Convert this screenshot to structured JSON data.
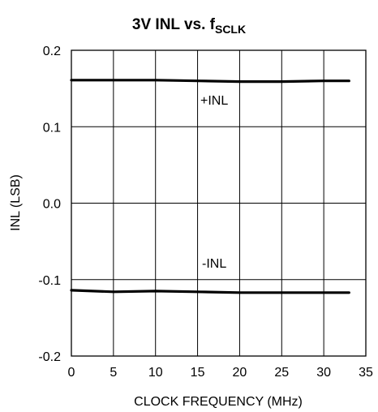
{
  "chart_data": {
    "type": "line",
    "title": "3V INL vs. f",
    "title_subscript": "SCLK",
    "xlabel": "CLOCK FREQUENCY (MHz)",
    "ylabel": "INL (LSB)",
    "xlim": [
      0,
      35
    ],
    "ylim": [
      -0.2,
      0.2
    ],
    "x_ticks": [
      0,
      5,
      10,
      15,
      20,
      25,
      30,
      35
    ],
    "x_tick_labels": [
      "0",
      "5",
      "10",
      "15",
      "20",
      "25",
      "30",
      "35"
    ],
    "y_ticks": [
      0.2,
      0.1,
      0.0,
      -0.1,
      -0.2
    ],
    "y_tick_labels": [
      "0.2",
      "0.1",
      "0.0",
      "-0.1",
      "-0.2"
    ],
    "grid": true,
    "series": [
      {
        "name": "+INL",
        "x": [
          0,
          5,
          10,
          15,
          20,
          25,
          30,
          33
        ],
        "y": [
          0.161,
          0.161,
          0.161,
          0.16,
          0.159,
          0.159,
          0.16,
          0.16
        ]
      },
      {
        "name": "-INL",
        "x": [
          0,
          5,
          10,
          15,
          20,
          25,
          30,
          33
        ],
        "y": [
          -0.114,
          -0.116,
          -0.115,
          -0.116,
          -0.117,
          -0.117,
          -0.117,
          -0.117
        ]
      }
    ]
  }
}
